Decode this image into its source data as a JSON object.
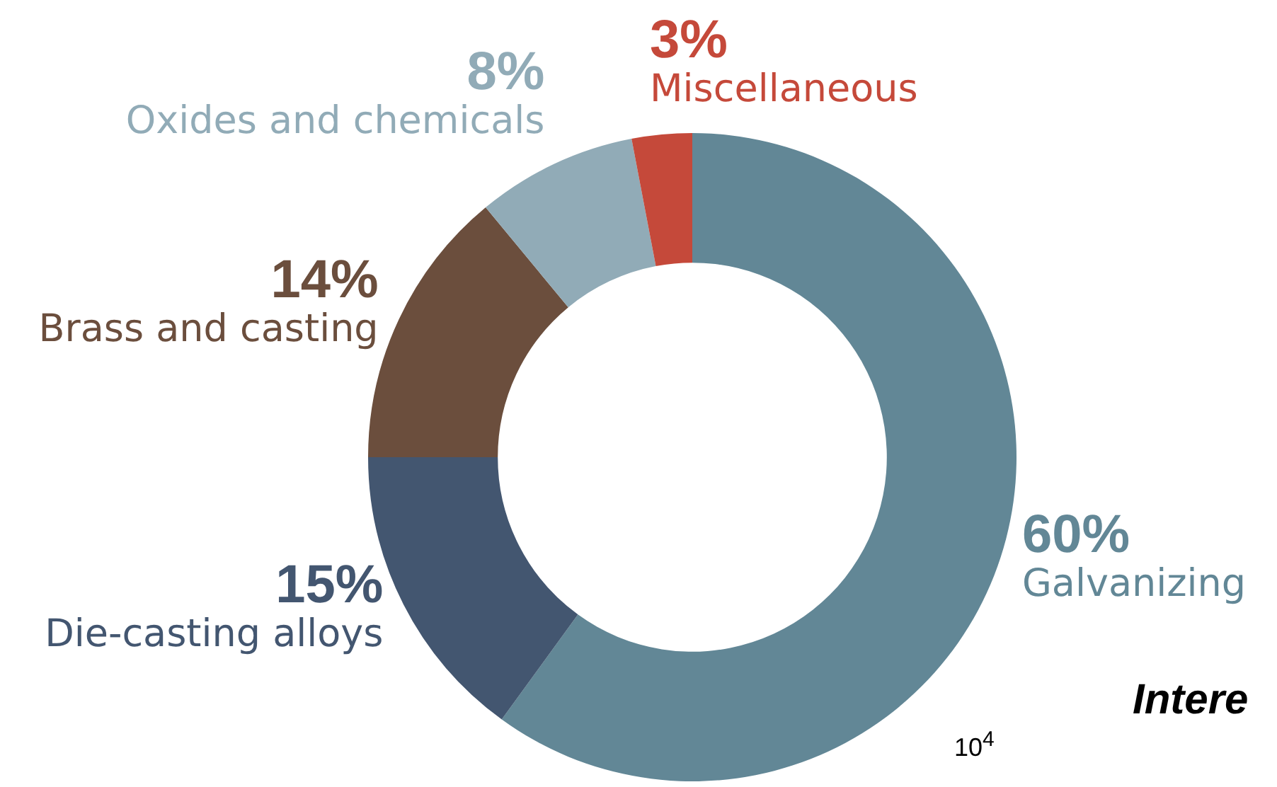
{
  "chart_data": {
    "type": "donut",
    "categories": [
      "Galvanizing",
      "Die-casting alloys",
      "Brass and casting",
      "Oxides and chemicals",
      "Miscellaneous"
    ],
    "values": [
      60,
      15,
      14,
      8,
      3
    ],
    "value_labels": [
      "60%",
      "15%",
      "14%",
      "8%",
      "3%"
    ],
    "colors": [
      "#628796",
      "#435670",
      "#6b4e3d",
      "#91abb7",
      "#c5493a"
    ],
    "legend": false,
    "annotations": [
      "Intere",
      "10$^{4}$"
    ]
  }
}
